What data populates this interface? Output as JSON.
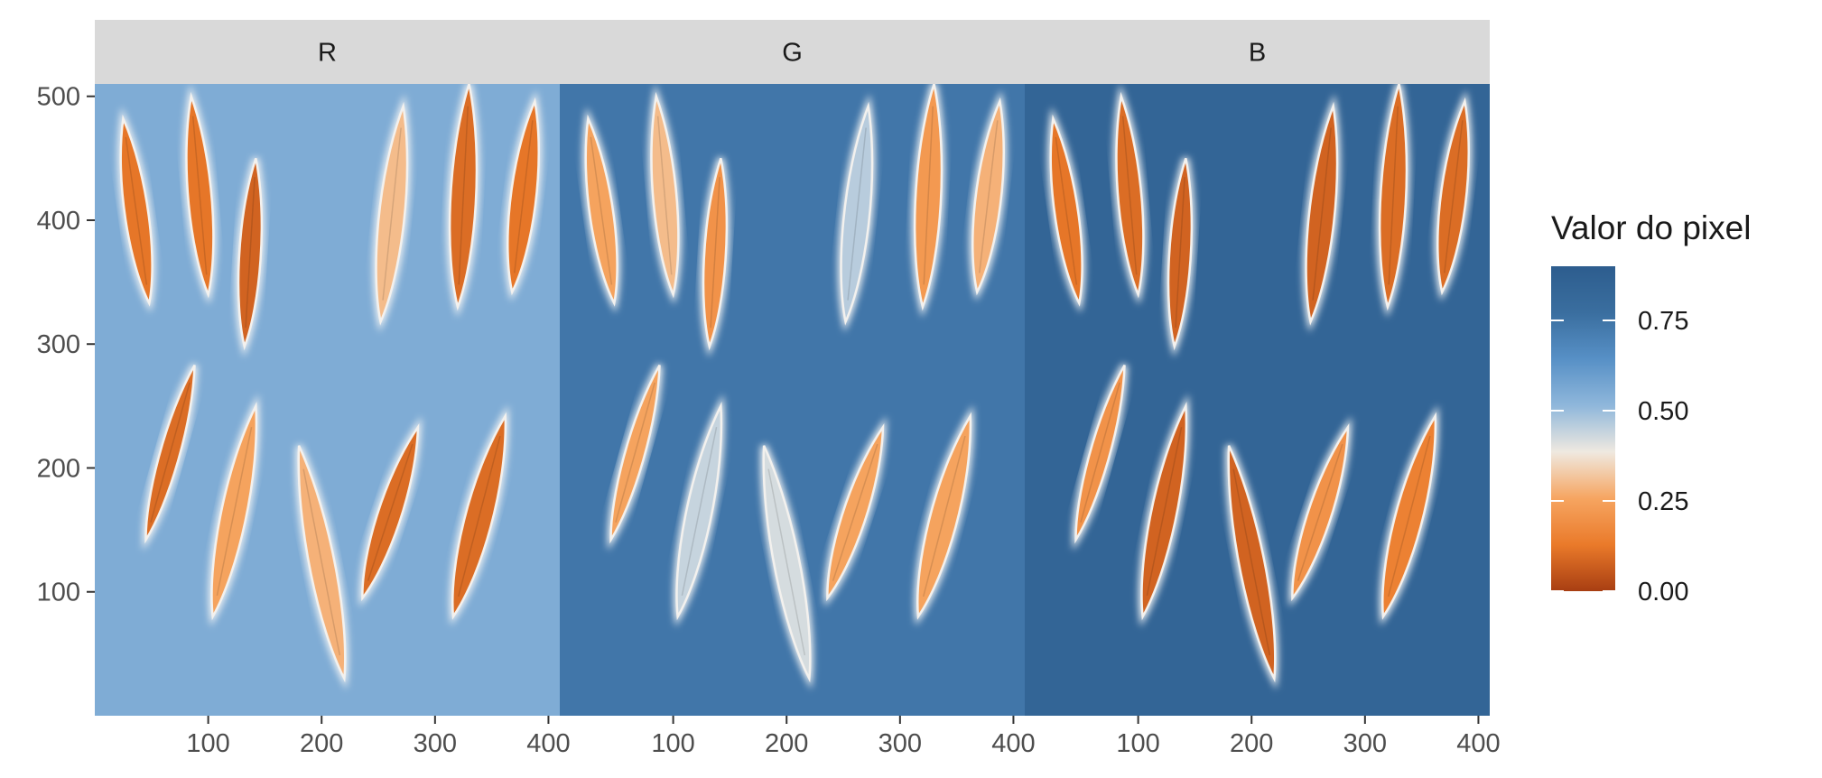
{
  "chart_data": {
    "type": "heatmap",
    "title": "",
    "xlabel": "",
    "ylabel": "",
    "xlim": [
      0,
      410
    ],
    "ylim": [
      0,
      510
    ],
    "x_ticks": [
      100,
      200,
      300,
      400
    ],
    "x_tick_labels": [
      "100",
      "200",
      "300",
      "400"
    ],
    "y_ticks": [
      100,
      200,
      300,
      400,
      500
    ],
    "y_tick_labels": [
      "100",
      "200",
      "300",
      "400",
      "500"
    ],
    "facets": [
      {
        "label": "R",
        "background_value": 0.55
      },
      {
        "label": "G",
        "background_value": 0.74
      },
      {
        "label": "B",
        "background_value": 0.84
      }
    ],
    "objects": [
      {
        "x1": 25,
        "y1": 482,
        "x2": 48,
        "y2": 333,
        "w": 24,
        "values": [
          0.12,
          0.25,
          0.12
        ]
      },
      {
        "x1": 85,
        "y1": 500,
        "x2": 100,
        "y2": 340,
        "w": 24,
        "values": [
          0.12,
          0.3,
          0.1
        ]
      },
      {
        "x1": 142,
        "y1": 450,
        "x2": 132,
        "y2": 298,
        "w": 22,
        "values": [
          0.08,
          0.2,
          0.08
        ]
      },
      {
        "x1": 272,
        "y1": 492,
        "x2": 252,
        "y2": 318,
        "w": 26,
        "values": [
          0.3,
          0.46,
          0.08
        ]
      },
      {
        "x1": 330,
        "y1": 510,
        "x2": 320,
        "y2": 330,
        "w": 26,
        "values": [
          0.1,
          0.22,
          0.1
        ]
      },
      {
        "x1": 388,
        "y1": 496,
        "x2": 368,
        "y2": 342,
        "w": 26,
        "values": [
          0.12,
          0.28,
          0.1
        ]
      },
      {
        "x1": 88,
        "y1": 283,
        "x2": 45,
        "y2": 142,
        "w": 20,
        "values": [
          0.1,
          0.25,
          0.2
        ]
      },
      {
        "x1": 142,
        "y1": 250,
        "x2": 104,
        "y2": 80,
        "w": 26,
        "values": [
          0.25,
          0.44,
          0.08
        ]
      },
      {
        "x1": 180,
        "y1": 218,
        "x2": 220,
        "y2": 30,
        "w": 26,
        "values": [
          0.28,
          0.42,
          0.08
        ]
      },
      {
        "x1": 285,
        "y1": 233,
        "x2": 236,
        "y2": 95,
        "w": 24,
        "values": [
          0.1,
          0.25,
          0.2
        ]
      },
      {
        "x1": 362,
        "y1": 242,
        "x2": 316,
        "y2": 80,
        "w": 28,
        "values": [
          0.1,
          0.25,
          0.15
        ]
      }
    ],
    "legend": {
      "title": "Valor do pixel",
      "position": "right",
      "range": [
        0,
        0.9
      ],
      "ticks": [
        0.0,
        0.25,
        0.5,
        0.75
      ],
      "tick_labels": [
        "0.00",
        "0.25",
        "0.50",
        "0.75"
      ],
      "colors": [
        "#a83e12",
        "#ea7a2a",
        "#f6a561",
        "#efe9e0",
        "#8fb7db",
        "#5790c6",
        "#3a6e9f",
        "#2d5d8e"
      ]
    },
    "strip_color": "#d9d9d9",
    "grid": false
  }
}
